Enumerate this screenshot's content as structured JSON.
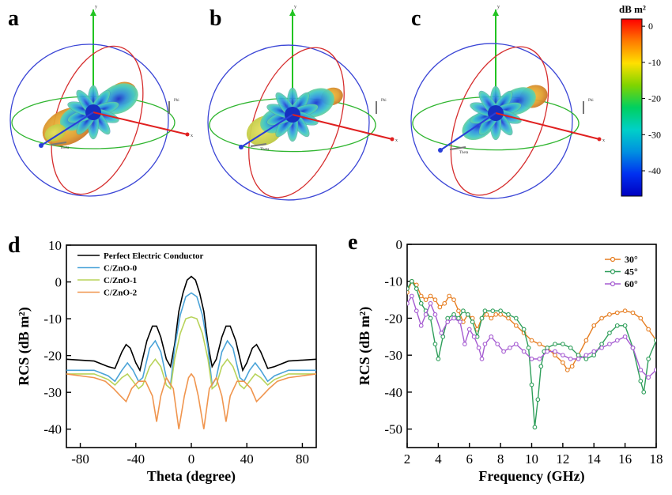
{
  "panel_labels": {
    "a": "a",
    "b": "b",
    "c": "c",
    "d": "d",
    "e": "e"
  },
  "patterns_3d": {
    "axis_labels": {
      "y": "y",
      "x": "x",
      "phi": "Phi",
      "theta": "Theta"
    },
    "colors": {
      "outer_sphere": "#3b46d6",
      "meridian": "#d62e2e",
      "equator": "#2fb52f",
      "y_axis": "#22c422",
      "x_axis": "#e02020",
      "z_axis": "#2a3fd8"
    }
  },
  "colorbar": {
    "title": "dB m²",
    "ticks": [
      "0",
      "-10",
      "-20",
      "-30",
      "-40"
    ],
    "tick_values": [
      0,
      -10,
      -20,
      -30,
      -40
    ],
    "range": [
      -47,
      2
    ],
    "colors": [
      "#ff0000",
      "#ff7a00",
      "#ffe000",
      "#7fd400",
      "#00d060",
      "#00d0c8",
      "#0090e0",
      "#0030f0",
      "#0000c0"
    ]
  },
  "chart_data": [
    {
      "type": "line",
      "xlabel": "Theta (degree)",
      "ylabel": "RCS (dB m²)",
      "xlim": [
        -90,
        90
      ],
      "ylim": [
        -45,
        10
      ],
      "xticks": [
        -80,
        -40,
        0,
        40,
        80
      ],
      "yticks": [
        10,
        0,
        -10,
        -20,
        -30,
        -40
      ],
      "legend_placement": "top-left",
      "series": [
        {
          "name": "Perfect Electric Conductor",
          "color": "#000000",
          "x": [
            -90,
            -70,
            -60,
            -55,
            -50,
            -47,
            -44,
            -40,
            -37,
            -32,
            -28,
            -25,
            -22,
            -18,
            -15,
            -12,
            -9,
            -6,
            -3,
            0,
            3,
            6,
            9,
            12,
            15,
            18,
            22,
            25,
            28,
            32,
            37,
            40,
            44,
            47,
            50,
            55,
            60,
            70,
            90
          ],
          "y": [
            -21,
            -21.5,
            -23,
            -23.5,
            -19,
            -17,
            -18,
            -22,
            -24,
            -16,
            -12,
            -12,
            -15,
            -21,
            -23,
            -17,
            -8,
            -3,
            0.5,
            1.5,
            0.5,
            -3,
            -8,
            -17,
            -23,
            -21,
            -15,
            -12,
            -12,
            -16,
            -24,
            -22,
            -18,
            -17,
            -19,
            -23.5,
            -23,
            -21.5,
            -21
          ]
        },
        {
          "name": "C/ZnO-0",
          "color": "#4aa3d8",
          "x": [
            -90,
            -70,
            -60,
            -55,
            -50,
            -46,
            -42,
            -38,
            -35,
            -30,
            -26,
            -22,
            -18,
            -15,
            -12,
            -8,
            -4,
            0,
            4,
            8,
            12,
            15,
            18,
            22,
            26,
            30,
            35,
            38,
            42,
            46,
            50,
            55,
            60,
            70,
            90
          ],
          "y": [
            -24,
            -24,
            -25.5,
            -27,
            -24,
            -22,
            -24,
            -27,
            -26,
            -18,
            -16,
            -19,
            -26,
            -28,
            -18,
            -9,
            -4,
            -3,
            -4,
            -9,
            -18,
            -28,
            -26,
            -19,
            -16,
            -18,
            -26,
            -27,
            -24,
            -22,
            -24,
            -27,
            -25.5,
            -24,
            -24
          ]
        },
        {
          "name": "C/ZnO-1",
          "color": "#b8d35a",
          "x": [
            -90,
            -70,
            -60,
            -55,
            -50,
            -46,
            -42,
            -38,
            -35,
            -30,
            -26,
            -22,
            -18,
            -15,
            -12,
            -8,
            -4,
            0,
            4,
            8,
            12,
            15,
            18,
            22,
            26,
            30,
            35,
            38,
            42,
            46,
            50,
            55,
            60,
            70,
            90
          ],
          "y": [
            -25,
            -25,
            -26.5,
            -28,
            -26,
            -25,
            -27,
            -29,
            -28,
            -23,
            -21,
            -23,
            -28,
            -29,
            -21,
            -14,
            -10,
            -9.5,
            -10,
            -14,
            -21,
            -29,
            -28,
            -23,
            -21,
            -23,
            -28,
            -29,
            -27,
            -25,
            -26,
            -28,
            -26.5,
            -25,
            -25
          ]
        },
        {
          "name": "C/ZnO-2",
          "color": "#f0954e",
          "x": [
            -90,
            -70,
            -62,
            -56,
            -51,
            -47,
            -43,
            -38,
            -33,
            -28,
            -25,
            -22,
            -18,
            -13,
            -9,
            -5,
            -2,
            0,
            2,
            5,
            9,
            13,
            18,
            22,
            25,
            28,
            33,
            38,
            43,
            47,
            51,
            56,
            62,
            70,
            90
          ],
          "y": [
            -25,
            -26,
            -27,
            -29,
            -31,
            -32.5,
            -29,
            -27,
            -27,
            -31,
            -38,
            -31,
            -26,
            -29,
            -40,
            -31,
            -26,
            -25,
            -26,
            -31,
            -40,
            -29,
            -26,
            -31,
            -38,
            -31,
            -27,
            -27,
            -29,
            -32.5,
            -31,
            -29,
            -27,
            -26,
            -25
          ]
        }
      ]
    },
    {
      "type": "line",
      "xlabel": "Frequency (GHz)",
      "ylabel": "RCS (dB m²)",
      "xlim": [
        2,
        18
      ],
      "ylim": [
        -55,
        0
      ],
      "xticks": [
        2,
        4,
        6,
        8,
        10,
        12,
        14,
        16,
        18
      ],
      "yticks": [
        0,
        -10,
        -20,
        -30,
        -40,
        -50
      ],
      "legend_placement": "top-right",
      "series": [
        {
          "name": "30°",
          "color": "#e67e22",
          "x": [
            2.0,
            2.3,
            2.6,
            2.9,
            3.2,
            3.5,
            3.8,
            4.1,
            4.4,
            4.7,
            5.0,
            5.3,
            5.6,
            5.9,
            6.2,
            6.5,
            6.8,
            7.1,
            7.4,
            7.7,
            8.0,
            8.5,
            9.0,
            9.5,
            10.0,
            10.5,
            11.0,
            11.5,
            12.0,
            12.3,
            12.6,
            13.0,
            13.5,
            14.0,
            14.5,
            15.0,
            15.5,
            16.0,
            16.5,
            17.0,
            17.5,
            18.0
          ],
          "y": [
            -13,
            -10,
            -11,
            -14,
            -15,
            -14,
            -15,
            -17,
            -16,
            -14,
            -15,
            -18,
            -21,
            -19,
            -20,
            -23,
            -20,
            -19,
            -20,
            -19,
            -19,
            -20,
            -22,
            -24,
            -26,
            -27,
            -28,
            -30,
            -32,
            -34,
            -33,
            -30,
            -26,
            -22,
            -20,
            -19,
            -18.5,
            -18,
            -18.5,
            -20,
            -23,
            -26
          ]
        },
        {
          "name": "45°",
          "color": "#2e9e5a",
          "x": [
            2.0,
            2.3,
            2.6,
            2.9,
            3.2,
            3.5,
            3.8,
            4.0,
            4.3,
            4.6,
            5.0,
            5.3,
            5.6,
            5.9,
            6.2,
            6.5,
            6.8,
            7.0,
            7.5,
            8.0,
            8.5,
            9.0,
            9.5,
            9.8,
            10.0,
            10.2,
            10.4,
            10.6,
            10.8,
            11.0,
            11.5,
            12.0,
            12.5,
            13.0,
            13.5,
            14.0,
            14.5,
            15.0,
            15.5,
            16.0,
            16.5,
            17.0,
            17.2,
            17.5,
            18.0
          ],
          "y": [
            -12,
            -10,
            -12,
            -16,
            -18,
            -20,
            -27,
            -31,
            -25,
            -20,
            -19,
            -20,
            -18,
            -19,
            -21,
            -25,
            -20,
            -18,
            -18,
            -18,
            -19,
            -20,
            -23,
            -28,
            -38,
            -49.5,
            -42,
            -33,
            -29,
            -28,
            -27,
            -27,
            -28,
            -30,
            -31,
            -30,
            -27,
            -24,
            -22,
            -22,
            -28,
            -37,
            -40,
            -31,
            -26
          ]
        },
        {
          "name": "60°",
          "color": "#a55bd1",
          "x": [
            2.0,
            2.3,
            2.6,
            2.9,
            3.2,
            3.5,
            3.8,
            4.2,
            4.6,
            5.0,
            5.4,
            5.7,
            6.0,
            6.3,
            6.6,
            6.8,
            7.0,
            7.4,
            7.8,
            8.2,
            8.6,
            9.0,
            9.5,
            10.0,
            10.5,
            11.0,
            11.5,
            12.0,
            12.5,
            13.0,
            13.5,
            14.0,
            14.5,
            15.0,
            15.5,
            16.0,
            16.5,
            17.0,
            17.5,
            18.0
          ],
          "y": [
            -16,
            -14,
            -18,
            -22,
            -19,
            -16,
            -19,
            -24,
            -21,
            -20,
            -21,
            -27,
            -23,
            -25,
            -28,
            -31,
            -27,
            -25,
            -27,
            -29,
            -28,
            -27,
            -29,
            -31,
            -31,
            -29,
            -29,
            -30,
            -31,
            -31,
            -30,
            -29,
            -28,
            -27,
            -26,
            -25,
            -28,
            -34,
            -36,
            -34
          ]
        }
      ]
    }
  ]
}
